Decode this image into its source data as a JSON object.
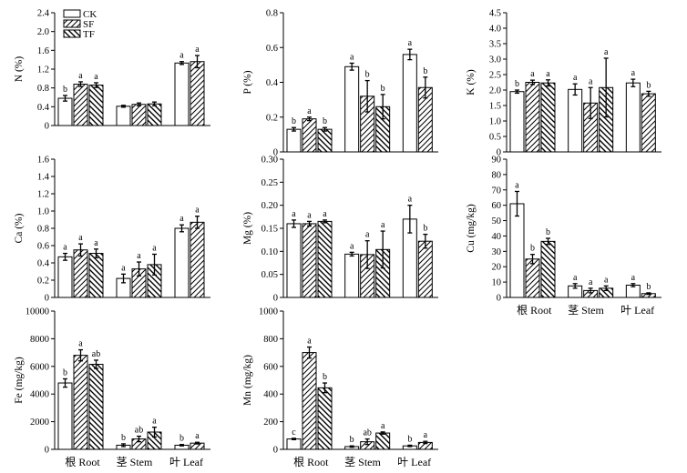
{
  "chart_data": {
    "type": "bar",
    "categories": [
      "根 Root",
      "茎 Stem",
      "叶 Leaf"
    ],
    "legend": {
      "items": [
        "CK",
        "SF",
        "TF"
      ],
      "patterns": [
        "white",
        "hatch-right",
        "hatch-left"
      ],
      "placement": "top-left of first panel"
    },
    "panels": [
      {
        "id": "N",
        "ylabel": "N (%)",
        "ylim": [
          0,
          2.4
        ],
        "yticks": [
          "0",
          "0.4",
          "0.8",
          "1.2",
          "1.6",
          "2.0",
          "2.4"
        ],
        "ytick_values": [
          0,
          0.4,
          0.8,
          1.2,
          1.6,
          2.0,
          2.4
        ],
        "show_x_labels": false,
        "series": [
          {
            "name": "CK",
            "values": [
              0.58,
              0.41,
              1.33
            ],
            "errors": [
              0.06,
              0.02,
              0.03
            ],
            "labels": [
              "b",
              "",
              "a"
            ]
          },
          {
            "name": "SF",
            "values": [
              0.88,
              0.45,
              1.36
            ],
            "errors": [
              0.05,
              0.03,
              0.13
            ],
            "labels": [
              "a",
              "",
              "a"
            ]
          },
          {
            "name": "TF",
            "values": [
              0.86,
              0.46,
              null
            ],
            "errors": [
              0.05,
              0.04,
              null
            ],
            "labels": [
              "a",
              "",
              ""
            ]
          }
        ]
      },
      {
        "id": "P",
        "ylabel": "P (%)",
        "ylim": [
          0,
          0.8
        ],
        "yticks": [
          "0",
          "0.2",
          "0.4",
          "0.6",
          "0.8"
        ],
        "ytick_values": [
          0,
          0.2,
          0.4,
          0.6,
          0.8
        ],
        "show_x_labels": false,
        "series": [
          {
            "name": "CK",
            "values": [
              0.13,
              0.49,
              0.56
            ],
            "errors": [
              0.01,
              0.02,
              0.03
            ],
            "labels": [
              "b",
              "a",
              "a"
            ]
          },
          {
            "name": "SF",
            "values": [
              0.19,
              0.32,
              0.37
            ],
            "errors": [
              0.01,
              0.09,
              0.06
            ],
            "labels": [
              "a",
              "b",
              "b"
            ]
          },
          {
            "name": "TF",
            "values": [
              0.13,
              0.26,
              null
            ],
            "errors": [
              0.01,
              0.07,
              null
            ],
            "labels": [
              "b",
              "b",
              ""
            ]
          }
        ]
      },
      {
        "id": "K",
        "ylabel": "K (%)",
        "ylim": [
          0,
          4.5
        ],
        "yticks": [
          "0",
          "0.5",
          "1.0",
          "1.5",
          "2.0",
          "2.5",
          "3.0",
          "3.5",
          "4.0",
          "4.5"
        ],
        "ytick_values": [
          0,
          0.5,
          1.0,
          1.5,
          2.0,
          2.5,
          3.0,
          3.5,
          4.0,
          4.5
        ],
        "show_x_labels": false,
        "series": [
          {
            "name": "CK",
            "values": [
              1.95,
              2.02,
              2.23
            ],
            "errors": [
              0.05,
              0.18,
              0.12
            ],
            "labels": [
              "b",
              "a",
              "a"
            ]
          },
          {
            "name": "SF",
            "values": [
              2.25,
              1.58,
              1.88
            ],
            "errors": [
              0.07,
              0.5,
              0.08
            ],
            "labels": [
              "a",
              "a",
              "b"
            ]
          },
          {
            "name": "TF",
            "values": [
              2.23,
              2.08,
              null
            ],
            "errors": [
              0.1,
              0.95,
              null
            ],
            "labels": [
              "a",
              "a",
              ""
            ]
          }
        ]
      },
      {
        "id": "Ca",
        "ylabel": "Ca (%)",
        "ylim": [
          0,
          1.6
        ],
        "yticks": [
          "0",
          "0.2",
          "0.4",
          "0.6",
          "0.8",
          "1.0",
          "1.2",
          "1.4",
          "1.6"
        ],
        "ytick_values": [
          0,
          0.2,
          0.4,
          0.6,
          0.8,
          1.0,
          1.2,
          1.4,
          1.6
        ],
        "show_x_labels": false,
        "series": [
          {
            "name": "CK",
            "values": [
              0.47,
              0.22,
              0.8
            ],
            "errors": [
              0.04,
              0.05,
              0.04
            ],
            "labels": [
              "a",
              "a",
              "a"
            ]
          },
          {
            "name": "SF",
            "values": [
              0.55,
              0.33,
              0.87
            ],
            "errors": [
              0.07,
              0.08,
              0.07
            ],
            "labels": [
              "a",
              "a",
              "a"
            ]
          },
          {
            "name": "TF",
            "values": [
              0.51,
              0.38,
              null
            ],
            "errors": [
              0.05,
              0.12,
              null
            ],
            "labels": [
              "a",
              "a",
              ""
            ]
          }
        ]
      },
      {
        "id": "Mg",
        "ylabel": "Mg (%)",
        "ylim": [
          0,
          0.3
        ],
        "yticks": [
          "0",
          "0.05",
          "0.10",
          "0.15",
          "0.20",
          "0.25",
          "0.30"
        ],
        "ytick_values": [
          0,
          0.05,
          0.1,
          0.15,
          0.2,
          0.25,
          0.3
        ],
        "show_x_labels": false,
        "series": [
          {
            "name": "CK",
            "values": [
              0.16,
              0.094,
              0.17
            ],
            "errors": [
              0.008,
              0.004,
              0.03
            ],
            "labels": [
              "a",
              "a",
              "a"
            ]
          },
          {
            "name": "SF",
            "values": [
              0.16,
              0.093,
              0.122
            ],
            "errors": [
              0.005,
              0.03,
              0.015
            ],
            "labels": [
              "a",
              "a",
              "b"
            ]
          },
          {
            "name": "TF",
            "values": [
              0.165,
              0.104,
              null
            ],
            "errors": [
              0.003,
              0.04,
              null
            ],
            "labels": [
              "a",
              "a",
              ""
            ]
          }
        ]
      },
      {
        "id": "Cu",
        "ylabel": "Cu (mg/kg)",
        "ylim": [
          0,
          90
        ],
        "yticks": [
          "0",
          "10",
          "20",
          "30",
          "40",
          "50",
          "60",
          "70",
          "80",
          "90"
        ],
        "ytick_values": [
          0,
          10,
          20,
          30,
          40,
          50,
          60,
          70,
          80,
          90
        ],
        "show_x_labels": true,
        "series": [
          {
            "name": "CK",
            "values": [
              61,
              7.5,
              8
            ],
            "errors": [
              8,
              1.5,
              1
            ],
            "labels": [
              "a",
              "a",
              "a"
            ]
          },
          {
            "name": "SF",
            "values": [
              25,
              4.5,
              2.5
            ],
            "errors": [
              3,
              1.5,
              0.5
            ],
            "labels": [
              "b",
              "a",
              "b"
            ]
          },
          {
            "name": "TF",
            "values": [
              36.5,
              6,
              null
            ],
            "errors": [
              2,
              1.5,
              null
            ],
            "labels": [
              "b",
              "a",
              ""
            ]
          }
        ]
      },
      {
        "id": "Fe",
        "ylabel": "Fe (mg/kg)",
        "ylim": [
          0,
          10000
        ],
        "yticks": [
          "0",
          "2000",
          "4000",
          "6000",
          "8000",
          "10000"
        ],
        "ytick_values": [
          0,
          2000,
          4000,
          6000,
          8000,
          10000
        ],
        "show_x_labels": true,
        "series": [
          {
            "name": "CK",
            "values": [
              4800,
              300,
              300
            ],
            "errors": [
              300,
              100,
              50
            ],
            "labels": [
              "b",
              "b",
              "b"
            ]
          },
          {
            "name": "SF",
            "values": [
              6800,
              750,
              450
            ],
            "errors": [
              400,
              200,
              60
            ],
            "labels": [
              "a",
              "ab",
              "a"
            ]
          },
          {
            "name": "TF",
            "values": [
              6150,
              1250,
              null
            ],
            "errors": [
              300,
              350,
              null
            ],
            "labels": [
              "ab",
              "a",
              ""
            ]
          }
        ]
      },
      {
        "id": "Mn",
        "ylabel": "Mn (mg/kg)",
        "ylim": [
          0,
          1000
        ],
        "yticks": [
          "0",
          "200",
          "400",
          "600",
          "800",
          "1000"
        ],
        "ytick_values": [
          0,
          200,
          400,
          600,
          800,
          1000
        ],
        "show_x_labels": true,
        "series": [
          {
            "name": "CK",
            "values": [
              75,
              20,
              25
            ],
            "errors": [
              5,
              5,
              5
            ],
            "labels": [
              "c",
              "b",
              "b"
            ]
          },
          {
            "name": "SF",
            "values": [
              700,
              55,
              50
            ],
            "errors": [
              40,
              20,
              8
            ],
            "labels": [
              "a",
              "ab",
              "a"
            ]
          },
          {
            "name": "TF",
            "values": [
              445,
              118,
              null
            ],
            "errors": [
              35,
              8,
              null
            ],
            "labels": [
              "b",
              "a",
              ""
            ]
          }
        ]
      }
    ]
  }
}
